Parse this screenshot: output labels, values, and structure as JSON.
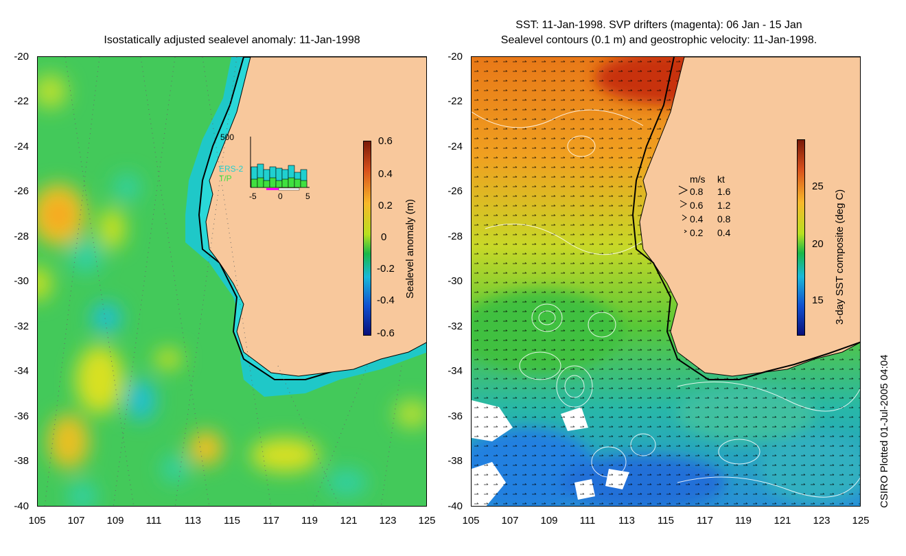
{
  "left_panel": {
    "title": "Isostatically adjusted sealevel anomaly: 11-Jan-1998",
    "y_ticks": [
      "-20",
      "-22",
      "-24",
      "-26",
      "-28",
      "-30",
      "-32",
      "-34",
      "-36",
      "-38",
      "-40"
    ],
    "x_ticks": [
      "105",
      "107",
      "109",
      "111",
      "113",
      "115",
      "117",
      "119",
      "121",
      "123",
      "125"
    ],
    "colorbar": {
      "title": "Sealevel anomaly (m)",
      "labels": [
        "0.6",
        "0.4",
        "0.2",
        "0",
        "-0.2",
        "-0.4",
        "-0.6"
      ],
      "colors": [
        "#7a1a08",
        "#d8501c",
        "#f8b82a",
        "#b8e020",
        "#19b848",
        "#1ab8d8",
        "#1050d0",
        "#08107a"
      ]
    },
    "inset": {
      "top_label": "500",
      "ers_label": "ERS-2",
      "tp_label": "T/P",
      "x_labels": [
        "-5",
        "0",
        "5"
      ],
      "ers_color": "#20d0d0",
      "tp_color": "#40e040",
      "drifter_color": "#ff00ff"
    }
  },
  "right_panel": {
    "title_line1": "SST: 11-Jan-1998. SVP drifters (magenta): 06 Jan - 15 Jan",
    "title_line2": "Sealevel contours (0.1 m) and geostrophic velocity: 11-Jan-1998.",
    "y_ticks": [
      "-20",
      "-22",
      "-24",
      "-26",
      "-28",
      "-30",
      "-32",
      "-34",
      "-36",
      "-38",
      "-40"
    ],
    "x_ticks": [
      "105",
      "107",
      "109",
      "111",
      "113",
      "115",
      "117",
      "119",
      "121",
      "123",
      "125"
    ],
    "colorbar": {
      "title": "3-day SST composite (deg C)",
      "labels": [
        "25",
        "20",
        "15"
      ],
      "colors": [
        "#7a1a08",
        "#d8501c",
        "#f8b82a",
        "#b8e020",
        "#19b848",
        "#1ab8d8",
        "#1050d0",
        "#08107a"
      ]
    },
    "velocity_legend": {
      "header_ms": "m/s",
      "header_kt": "kt",
      "rows": [
        {
          "ms": "0.8",
          "kt": "1.6"
        },
        {
          "ms": "0.6",
          "kt": "1.2"
        },
        {
          "ms": "0.4",
          "kt": "0.8"
        },
        {
          "ms": "0.2",
          "kt": "0.4"
        }
      ]
    }
  },
  "land_color": "#f8c89c",
  "credit": "CSIRO Plotted 01-Jul-2005 04:04"
}
